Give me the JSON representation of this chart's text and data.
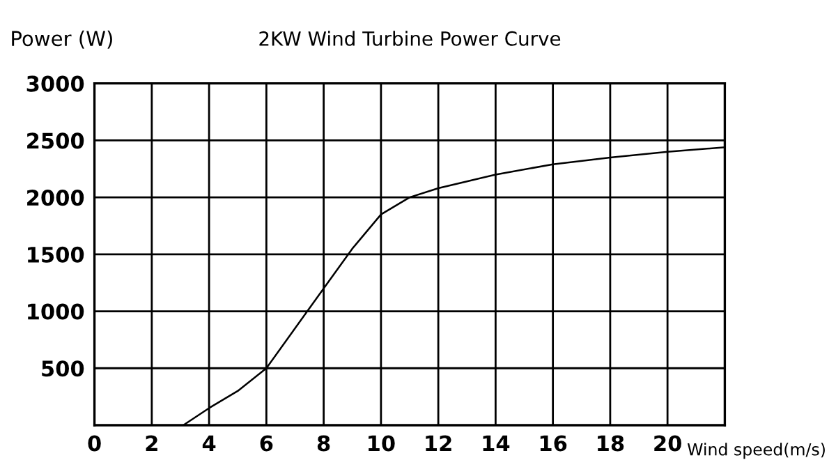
{
  "chart_data": {
    "type": "line",
    "title": "2KW Wind Turbine Power Curve",
    "xlabel": "Wind speed(m/s)",
    "ylabel": "Power (W)",
    "x": [
      3.1,
      4,
      5,
      6,
      7,
      8,
      9,
      10,
      11,
      12,
      13,
      14,
      16,
      18,
      20,
      22
    ],
    "series": [
      {
        "color": "#000000",
        "values": [
          0,
          150,
          300,
          500,
          850,
          1200,
          1550,
          1850,
          2000,
          2080,
          2140,
          2200,
          2290,
          2350,
          2400,
          2440
        ]
      }
    ],
    "xlim": [
      0,
      22
    ],
    "ylim": [
      0,
      3000
    ],
    "xticks": [
      0,
      2,
      4,
      6,
      8,
      10,
      12,
      14,
      16,
      18,
      20,
      {
        "value": 22,
        "label": null
      }
    ],
    "yticks": [
      500,
      1000,
      1500,
      2000,
      2500,
      3000
    ],
    "grid": true,
    "legend": false,
    "marker": "none",
    "line_style": "solid"
  }
}
